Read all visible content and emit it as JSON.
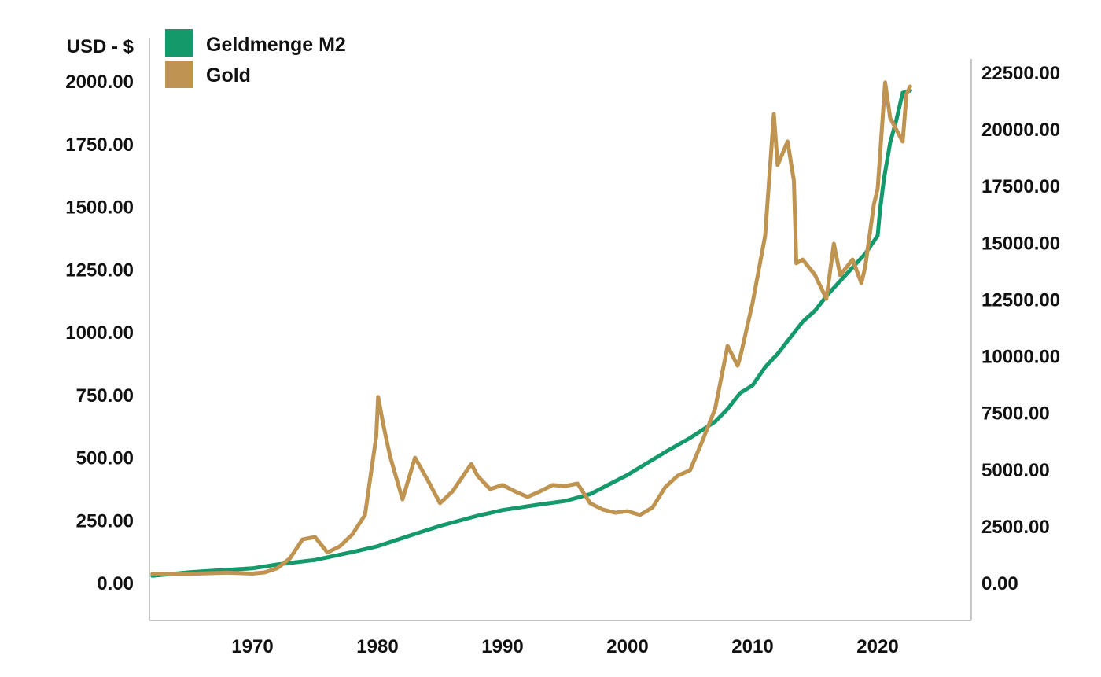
{
  "chart_data": {
    "type": "line",
    "title": "",
    "ylabel_left": "USD - $",
    "xlabel": "",
    "legend_position": "top-left",
    "grid": false,
    "x_ticks": [
      1970,
      1980,
      1990,
      2000,
      2010,
      2020
    ],
    "x_range": [
      1961.8,
      2027.5
    ],
    "y_left": {
      "ticks": [
        "0.00",
        "250.00",
        "500.00",
        "750.00",
        "1000.00",
        "1250.00",
        "1500.00",
        "1750.00",
        "2000.00"
      ],
      "range": [
        0,
        2000
      ]
    },
    "y_right": {
      "ticks": [
        "0.00",
        "2500.00",
        "5000.00",
        "7500.00",
        "10000.00",
        "12500.00",
        "15000.00",
        "17500.00",
        "20000.00",
        "22500.00"
      ],
      "range": [
        0,
        22500
      ]
    },
    "series": [
      {
        "name": "Geldmenge M2",
        "color": "#14996b",
        "axis": "right",
        "x": [
          1962,
          1965,
          1968,
          1970,
          1972,
          1975,
          1978,
          1980,
          1983,
          1985,
          1988,
          1990,
          1993,
          1995,
          1997,
          2000,
          2003,
          2005,
          2007,
          2008,
          2009,
          2010,
          2011,
          2012,
          2013,
          2014,
          2015,
          2016,
          2017,
          2018,
          2019,
          2020.0,
          2020.2,
          2020.5,
          2021,
          2021.5,
          2022,
          2022.6
        ],
        "y": [
          300,
          460,
          560,
          630,
          800,
          1000,
          1350,
          1600,
          2150,
          2500,
          2950,
          3200,
          3450,
          3600,
          3900,
          4750,
          5750,
          6380,
          7100,
          7660,
          8360,
          8700,
          9500,
          10090,
          10800,
          11500,
          12000,
          12700,
          13300,
          13900,
          14500,
          15300,
          16500,
          17800,
          19400,
          20400,
          21600,
          21700
        ]
      },
      {
        "name": "Gold",
        "color": "#bf9350",
        "axis": "left",
        "x": [
          1962,
          1965,
          1968,
          1970,
          1971,
          1972,
          1973,
          1974,
          1975,
          1976,
          1977,
          1978,
          1979,
          1979.9,
          1980.05,
          1980.5,
          1981,
          1982,
          1983,
          1984,
          1985,
          1986,
          1987.5,
          1988,
          1989,
          1990,
          1991,
          1992,
          1993,
          1994,
          1995,
          1996,
          1997,
          1998,
          1999,
          2000,
          2001,
          2002,
          2003,
          2004,
          2005,
          2006,
          2007,
          2008,
          2008.8,
          2009,
          2010,
          2011,
          2011.7,
          2012,
          2012.8,
          2013.3,
          2013.5,
          2014,
          2015,
          2015.9,
          2016.5,
          2017,
          2018,
          2018.7,
          2019,
          2019.7,
          2020,
          2020.6,
          2021,
          2021.5,
          2022,
          2022.3,
          2022.6
        ],
        "y": [
          35,
          35,
          40,
          36,
          41,
          58,
          97,
          172,
          182,
          120,
          145,
          193,
          270,
          583,
          740,
          620,
          505,
          332,
          498,
          410,
          317,
          364,
          473,
          426,
          373,
          389,
          364,
          342,
          364,
          389,
          385,
          395,
          317,
          292,
          279,
          285,
          270,
          300,
          380,
          426,
          448,
          567,
          693,
          944,
          865,
          897,
          1116,
          1382,
          1868,
          1665,
          1759,
          1602,
          1273,
          1288,
          1226,
          1132,
          1351,
          1226,
          1288,
          1194,
          1257,
          1508,
          1570,
          1994,
          1853,
          1806,
          1759,
          1947,
          1978
        ]
      }
    ]
  }
}
